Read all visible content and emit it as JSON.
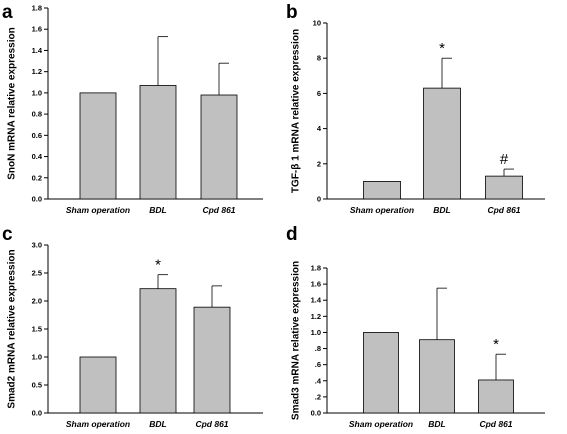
{
  "chart_data": [
    {
      "type": "bar",
      "panel": "a",
      "categories": [
        "Sham operation",
        "BDL",
        "Cpd 861"
      ],
      "values": [
        1.0,
        1.07,
        0.98
      ],
      "errors": [
        0,
        0.46,
        0.3
      ],
      "annotations": [
        "",
        "",
        ""
      ],
      "ylabel": "SnoN mRNA relative expression",
      "ylim": [
        0,
        1.8
      ],
      "yticks": [
        "0.0",
        "0.2",
        "0.4",
        "0.6",
        "0.8",
        "1.0",
        "1.2",
        "1.4",
        "1.6",
        "1.8"
      ],
      "grid": false,
      "bar_color": "#c0c0c0"
    },
    {
      "type": "bar",
      "panel": "b",
      "categories": [
        "Sham operation",
        "BDL",
        "Cpd 861"
      ],
      "values": [
        1.0,
        6.3,
        1.3
      ],
      "errors": [
        0,
        1.7,
        0.4
      ],
      "annotations": [
        "",
        "*",
        "#"
      ],
      "ylabel": "TGF-β 1 mRNA relative expression",
      "ylim": [
        0,
        10
      ],
      "yticks": [
        "0",
        "2",
        "4",
        "6",
        "8",
        "10"
      ],
      "grid": false,
      "bar_color": "#c0c0c0"
    },
    {
      "type": "bar",
      "panel": "c",
      "categories": [
        "Sham operation",
        "BDL",
        "Cpd 861"
      ],
      "values": [
        1.0,
        2.22,
        1.89
      ],
      "errors": [
        0,
        0.25,
        0.38
      ],
      "annotations": [
        "",
        "*",
        ""
      ],
      "ylabel": "Smad2 mRNA relative expression",
      "ylim": [
        0,
        3.0
      ],
      "yticks": [
        "0.0",
        "0.5",
        "1.0",
        "1.5",
        "2.0",
        "2.5",
        "3.0"
      ],
      "grid": false,
      "bar_color": "#c0c0c0"
    },
    {
      "type": "bar",
      "panel": "d",
      "categories": [
        "Sham operation",
        "BDL",
        "Cpd 861"
      ],
      "values": [
        1.0,
        0.91,
        0.41
      ],
      "errors": [
        0,
        0.64,
        0.32
      ],
      "annotations": [
        "",
        "",
        "*"
      ],
      "ylabel": "Smad3 mRNA relative expression",
      "ylim": [
        0,
        1.8
      ],
      "yticks": [
        "0.0",
        ".2",
        ".4",
        ".6",
        ".8",
        "1.0",
        "1.2",
        "1.4",
        "1.6",
        "1.8"
      ],
      "grid": false,
      "bar_color": "#c0c0c0"
    }
  ]
}
